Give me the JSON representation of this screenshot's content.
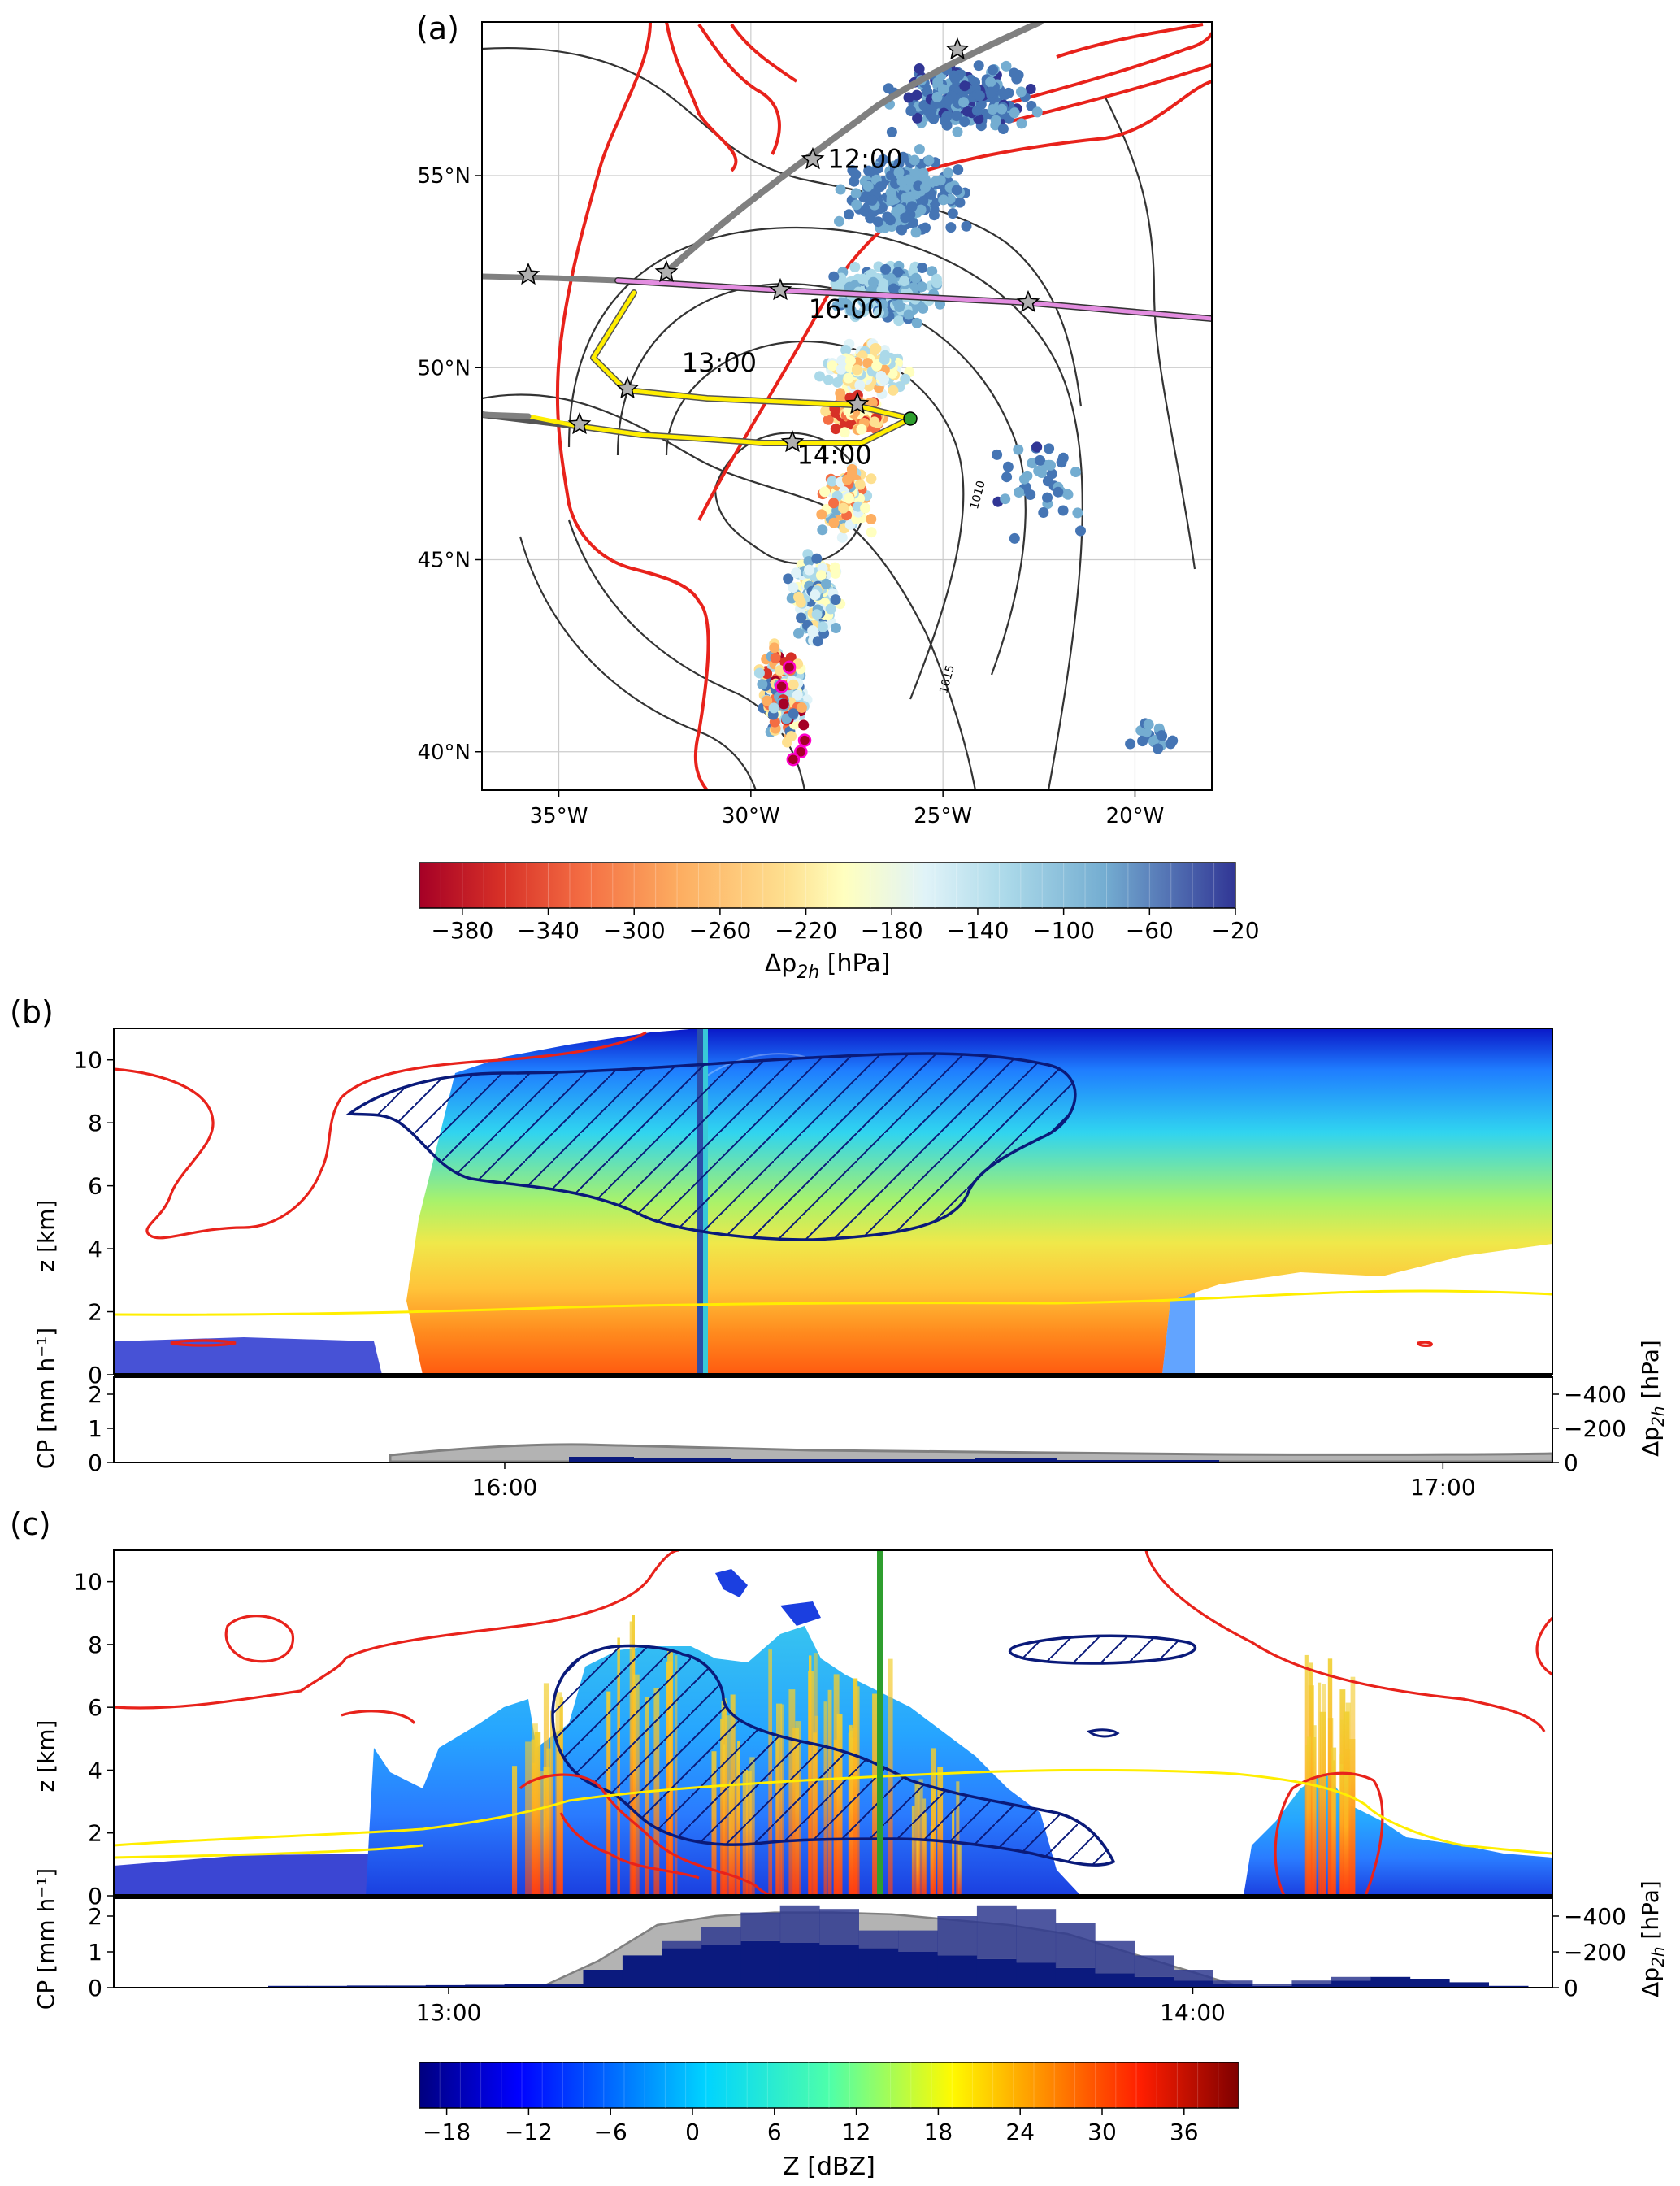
{
  "figure": {
    "panel_labels": [
      "(a)",
      "(b)",
      "(c)"
    ],
    "colors": {
      "trajectory_gray": "#808080",
      "trajectory_pink": "#e38de0",
      "trajectory_yellow": "#ffee00",
      "red_contour": "#e8221b",
      "dark_blue_contour": "#0a1a7a",
      "isobar": "#333333",
      "dark_navy_bars": "#0b1a7e",
      "gray_area": "#b3b3b3",
      "green_marker": "#2e9e2e"
    }
  },
  "chart_data": [
    {
      "id": "a",
      "type": "scatter",
      "title": "",
      "subtitle": "",
      "xlabel": "",
      "ylabel": "",
      "xlim": [
        -37,
        -18
      ],
      "ylim": [
        39,
        59
      ],
      "x_tick_values": [
        -35,
        -30,
        -25,
        -20
      ],
      "x_tick_labels": [
        "35°W",
        "30°W",
        "25°W",
        "20°W"
      ],
      "y_tick_values": [
        40,
        45,
        50,
        55
      ],
      "y_tick_labels": [
        "40°N",
        "45°N",
        "50°N",
        "55°N"
      ],
      "grid": true,
      "time_labels": [
        {
          "text": "12:00",
          "lon": -28.0,
          "lat": 55.2
        },
        {
          "text": "16:00",
          "lon": -28.5,
          "lat": 51.3
        },
        {
          "text": "13:00",
          "lon": -31.8,
          "lat": 49.9
        },
        {
          "text": "14:00",
          "lon": -28.8,
          "lat": 47.5
        }
      ],
      "isobar_labels": [
        {
          "text": "1010",
          "lon": -24.1,
          "lat": 46.3
        },
        {
          "text": "1015",
          "lon": -24.9,
          "lat": 41.5
        }
      ],
      "colorbar": {
        "label": "Δp_2h [hPa]",
        "label_main": "Δp",
        "label_sub": "2h",
        "label_unit": " [hPa]",
        "range": [
          -400,
          -20
        ],
        "ticks": [
          -380,
          -340,
          -300,
          -260,
          -220,
          -180,
          -140,
          -100,
          -60,
          -20
        ],
        "tick_labels": [
          "−380",
          "−340",
          "−300",
          "−260",
          "−220",
          "−180",
          "−140",
          "−100",
          "−60",
          "−20"
        ],
        "cmap": "RdYlBu"
      }
    },
    {
      "id": "b",
      "type": "heatmap",
      "title": "",
      "xlabel": "",
      "ylabel": "z [km]",
      "ylim": [
        0,
        11
      ],
      "y_tick_values": [
        0,
        2,
        4,
        6,
        8,
        10
      ],
      "y_tick_labels": [
        "0",
        "2",
        "4",
        "6",
        "8",
        "10"
      ],
      "x_range_time": [
        "15:35",
        "17:07"
      ],
      "x_tick_labels": [
        "16:00",
        "17:00"
      ],
      "x_tick_values": [
        "16:00",
        "17:00"
      ],
      "sub_ylabel_left": "CP [mm h⁻¹]",
      "sub_ylabel_right": "Δp_2h [hPa]",
      "sub_ylabel_right_main": "Δp",
      "sub_ylabel_right_sub": "2h",
      "sub_ylabel_right_unit": " [hPa]",
      "sub_left_ticks": [
        "0",
        "1",
        "2"
      ],
      "sub_right_ticks": [
        "−400",
        "−200",
        "0"
      ],
      "sub_left_ylim": [
        0,
        2.5
      ],
      "sub_right_ylim": [
        0,
        -500
      ]
    },
    {
      "id": "c",
      "type": "heatmap",
      "title": "",
      "xlabel": "",
      "ylabel": "z [km]",
      "ylim": [
        0,
        11
      ],
      "y_tick_values": [
        0,
        2,
        4,
        6,
        8,
        10
      ],
      "y_tick_labels": [
        "0",
        "2",
        "4",
        "6",
        "8",
        "10"
      ],
      "x_range_time": [
        "12:33",
        "14:29"
      ],
      "x_tick_labels": [
        "13:00",
        "14:00"
      ],
      "x_tick_values": [
        "13:00",
        "14:00"
      ],
      "sub_ylabel_left": "CP [mm h⁻¹]",
      "sub_ylabel_right": "Δp_2h [hPa]",
      "sub_ylabel_right_main": "Δp",
      "sub_ylabel_right_sub": "2h",
      "sub_ylabel_right_unit": " [hPa]",
      "sub_left_ticks": [
        "0",
        "1",
        "2"
      ],
      "sub_right_ticks": [
        "−400",
        "−200",
        "0"
      ],
      "sub_left_ylim": [
        0,
        2.5
      ],
      "sub_right_ylim": [
        0,
        -500
      ],
      "cp_bars": [
        0.05,
        0.05,
        0.06,
        0.06,
        0.07,
        0.08,
        0.09,
        0.1,
        0.5,
        0.9,
        1.1,
        1.2,
        1.3,
        1.25,
        1.2,
        1.1,
        1.0,
        0.9,
        0.8,
        0.7,
        0.55,
        0.4,
        0.3,
        0.2,
        0.1,
        0.05,
        0.1,
        0.2,
        0.3,
        0.25,
        0.15,
        0.05
      ],
      "dp2h_area": [
        0,
        0,
        0,
        -150,
        -350,
        -400,
        -420,
        -420,
        -410,
        -380,
        -350,
        -300,
        -200,
        -100,
        0
      ]
    },
    {
      "id": "colorbar_Z",
      "type": "heatmap",
      "title": "",
      "label": "Z [dBZ]",
      "range": [
        -20,
        40
      ],
      "ticks": [
        -18,
        -12,
        -6,
        0,
        6,
        12,
        18,
        24,
        30,
        36
      ],
      "tick_labels": [
        "−18",
        "−12",
        "−6",
        "0",
        "6",
        "12",
        "18",
        "24",
        "30",
        "36"
      ],
      "cmap": "jet"
    }
  ]
}
